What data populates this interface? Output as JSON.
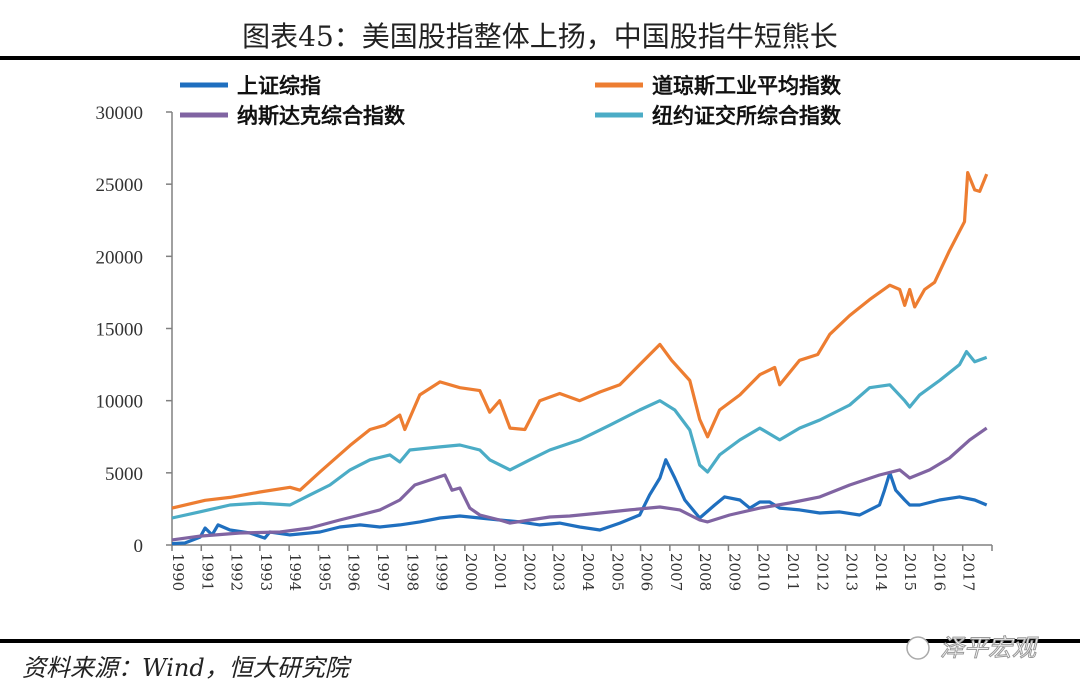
{
  "chart_data": {
    "type": "line",
    "title": "图表45：美国股指整体上扬，中国股指牛短熊长",
    "xlabel": "",
    "ylabel": "",
    "ylim": [
      0,
      30000
    ],
    "xlim": [
      1991,
      2019
    ],
    "yticks": [
      "0",
      "5000",
      "10000",
      "15000",
      "20000",
      "25000",
      "30000"
    ],
    "ytick_values": [
      0,
      5000,
      10000,
      15000,
      20000,
      25000,
      30000
    ],
    "xtick_labels": [
      "1990",
      "1991",
      "1992",
      "1993",
      "1994",
      "1995",
      "1996",
      "1997",
      "1998",
      "1999",
      "2000",
      "2001",
      "2002",
      "2003",
      "2004",
      "2005",
      "2006",
      "2007",
      "2008",
      "2009",
      "2010",
      "2011",
      "2012",
      "2013",
      "2014",
      "2015",
      "2016",
      "2017"
    ],
    "grid": false,
    "legend_position": "top",
    "series": [
      {
        "name": "上证综指",
        "color": "#1f6fbf",
        "x": [
          1991.0,
          1991.44,
          1991.96,
          1992.13,
          1992.37,
          1992.57,
          1992.98,
          1993.66,
          1994.17,
          1994.34,
          1995.03,
          1996.05,
          1996.73,
          1997.42,
          1998.1,
          1998.78,
          1999.46,
          2000.15,
          2000.83,
          2001.51,
          2002.19,
          2002.88,
          2003.56,
          2004.24,
          2004.92,
          2005.61,
          2006.29,
          2006.97,
          2007.31,
          2007.66,
          2007.86,
          2008.17,
          2008.51,
          2009.02,
          2009.53,
          2009.87,
          2010.39,
          2010.73,
          2011.07,
          2011.41,
          2011.75,
          2012.43,
          2013.12,
          2013.8,
          2014.48,
          2015.16,
          2015.33,
          2015.51,
          2015.71,
          2016.02,
          2016.19,
          2016.53,
          2017.21,
          2017.89,
          2018.41,
          2018.82
        ],
        "y": [
          100,
          140,
          550,
          1180,
          700,
          1390,
          1040,
          830,
          480,
          900,
          700,
          900,
          1250,
          1390,
          1250,
          1390,
          1600,
          1870,
          2010,
          1870,
          1730,
          1600,
          1390,
          1520,
          1250,
          1040,
          1520,
          2080,
          3470,
          4640,
          5900,
          4640,
          3120,
          1870,
          2770,
          3330,
          3120,
          2560,
          2980,
          2980,
          2560,
          2430,
          2220,
          2290,
          2080,
          2770,
          3800,
          5000,
          3800,
          3120,
          2770,
          2770,
          3120,
          3330,
          3120,
          2770
        ]
      },
      {
        "name": "道琼斯工业平均指数",
        "color": "#ed7d31",
        "x": [
          1991.0,
          1992.13,
          1992.98,
          1994.0,
          1995.03,
          1995.37,
          1996.05,
          1997.08,
          1997.76,
          1998.27,
          1998.78,
          1998.95,
          1999.46,
          2000.15,
          2000.83,
          2001.51,
          2001.85,
          2002.19,
          2002.54,
          2003.05,
          2003.56,
          2004.24,
          2004.92,
          2005.61,
          2006.29,
          2006.97,
          2007.66,
          2008.06,
          2008.68,
          2009.02,
          2009.29,
          2009.7,
          2010.39,
          2011.07,
          2011.58,
          2011.75,
          2012.43,
          2013.05,
          2013.46,
          2014.14,
          2014.82,
          2015.51,
          2015.85,
          2016.02,
          2016.19,
          2016.36,
          2016.7,
          2017.04,
          2017.55,
          2018.06,
          2018.17,
          2018.41,
          2018.58,
          2018.82
        ],
        "y": [
          2560,
          3100,
          3300,
          3670,
          4000,
          3800,
          5060,
          6900,
          8000,
          8300,
          9000,
          8000,
          10400,
          11300,
          10900,
          10700,
          9200,
          10000,
          8100,
          8000,
          10000,
          10500,
          10000,
          10600,
          11100,
          12500,
          13900,
          12800,
          11400,
          8700,
          7500,
          9350,
          10400,
          11800,
          12300,
          11100,
          12800,
          13200,
          14600,
          15900,
          17000,
          18000,
          17700,
          16600,
          17700,
          16500,
          17700,
          18200,
          20400,
          22400,
          25800,
          24600,
          24500,
          25700
        ]
      },
      {
        "name": "纳斯达克综合指数",
        "color": "#8064a2",
        "x": [
          1991.0,
          1991.96,
          1993.32,
          1994.69,
          1995.71,
          1996.73,
          1997.42,
          1998.1,
          1998.78,
          1999.29,
          2000.32,
          2000.56,
          2000.83,
          2001.17,
          2001.51,
          2002.19,
          2002.54,
          2003.22,
          2003.9,
          2004.58,
          2005.61,
          2006.63,
          2007.66,
          2008.34,
          2009.02,
          2009.29,
          2010.04,
          2011.07,
          2012.09,
          2013.12,
          2014.14,
          2015.16,
          2015.85,
          2016.19,
          2016.87,
          2017.55,
          2018.24,
          2018.82
        ],
        "y": [
          350,
          620,
          830,
          900,
          1180,
          1730,
          2080,
          2430,
          3120,
          4160,
          4850,
          3800,
          3950,
          2560,
          2080,
          1730,
          1520,
          1730,
          1940,
          2010,
          2220,
          2430,
          2630,
          2430,
          1730,
          1600,
          2080,
          2560,
          2910,
          3330,
          4160,
          4850,
          5200,
          4640,
          5200,
          6030,
          7280,
          8100
        ]
      },
      {
        "name": "纽约证交所综合指数",
        "color": "#4bacc6",
        "x": [
          1991.0,
          1991.96,
          1992.98,
          1994.0,
          1995.03,
          1995.71,
          1996.39,
          1997.08,
          1997.76,
          1998.44,
          1998.78,
          1999.12,
          2000.15,
          2000.83,
          2001.51,
          2001.85,
          2002.54,
          2003.22,
          2003.9,
          2004.92,
          2005.95,
          2006.97,
          2007.66,
          2008.17,
          2008.68,
          2009.02,
          2009.29,
          2009.7,
          2010.39,
          2011.07,
          2011.75,
          2012.43,
          2013.12,
          2014.14,
          2014.82,
          2015.51,
          2016.02,
          2016.19,
          2016.53,
          2017.21,
          2017.89,
          2018.13,
          2018.41,
          2018.82
        ],
        "y": [
          1870,
          2300,
          2770,
          2900,
          2770,
          3470,
          4160,
          5200,
          5900,
          6240,
          5750,
          6580,
          6800,
          6930,
          6580,
          5900,
          5200,
          5900,
          6580,
          7280,
          8300,
          9350,
          10000,
          9350,
          7970,
          5540,
          5060,
          6240,
          7280,
          8100,
          7280,
          8100,
          8660,
          9700,
          10900,
          11100,
          10000,
          9560,
          10400,
          11400,
          12500,
          13400,
          12700,
          13000
        ]
      }
    ]
  },
  "source": "资料来源：Wind，恒大研究院",
  "watermark": "泽平宏观",
  "colors": {
    "axis": "#808080",
    "rule": "#000000"
  }
}
